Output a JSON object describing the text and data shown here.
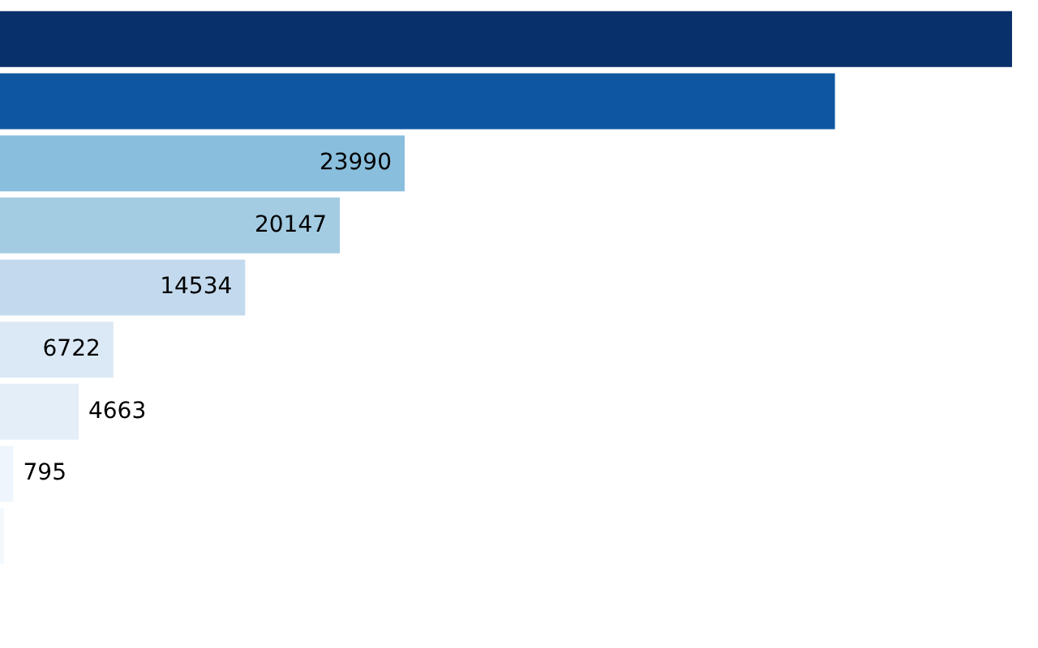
{
  "chart_data": {
    "type": "bar",
    "orientation": "horizontal",
    "categories": [
      null,
      null,
      null,
      null,
      null,
      null,
      null,
      null,
      null
    ],
    "values": [
      60000,
      49500,
      23990,
      20147,
      14534,
      6722,
      4663,
      795,
      250
    ],
    "colors": [
      "#08306b",
      "#0e56a0",
      "#89bedc",
      "#a3cce3",
      "#c3daee",
      "#dbe9f6",
      "#e3eef8",
      "#eff5fc",
      "#f3f8fd"
    ],
    "value_labels": [
      null,
      null,
      "23990",
      "20147",
      "14534",
      "6722",
      "4663",
      "795",
      null
    ],
    "legend": false,
    "tick_labels": false
  }
}
